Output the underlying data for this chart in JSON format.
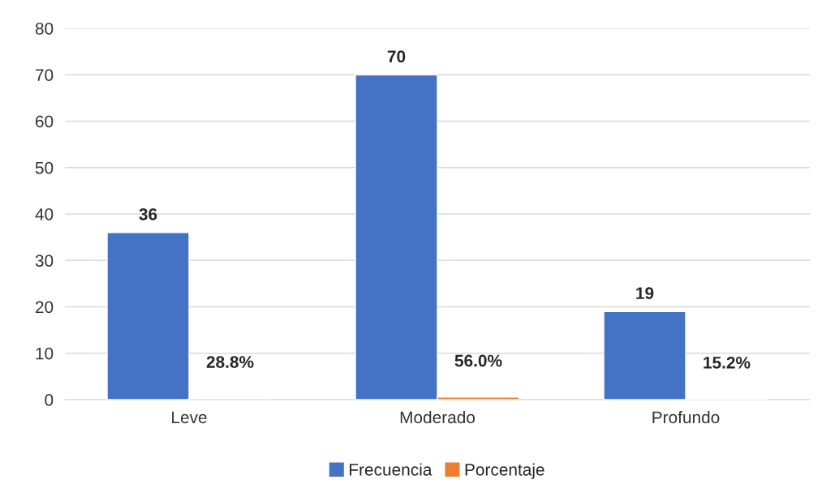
{
  "chart_data": {
    "type": "bar",
    "categories": [
      "Leve",
      "Moderado",
      "Profundo"
    ],
    "series": [
      {
        "name": "Frecuencia",
        "color": "#4472c4",
        "values": [
          36,
          70,
          19
        ],
        "value_labels": [
          "36",
          "70",
          "19"
        ]
      },
      {
        "name": "Porcentaje",
        "color": "#ed7d31",
        "values": [
          0.288,
          0.56,
          0.152
        ],
        "value_labels": [
          "28.8%",
          "56.0%",
          "15.2%"
        ]
      }
    ],
    "ylim": [
      0,
      80
    ],
    "yticks": [
      0,
      10,
      20,
      30,
      40,
      50,
      60,
      70,
      80
    ],
    "grid": "y",
    "legend": "bottom"
  }
}
